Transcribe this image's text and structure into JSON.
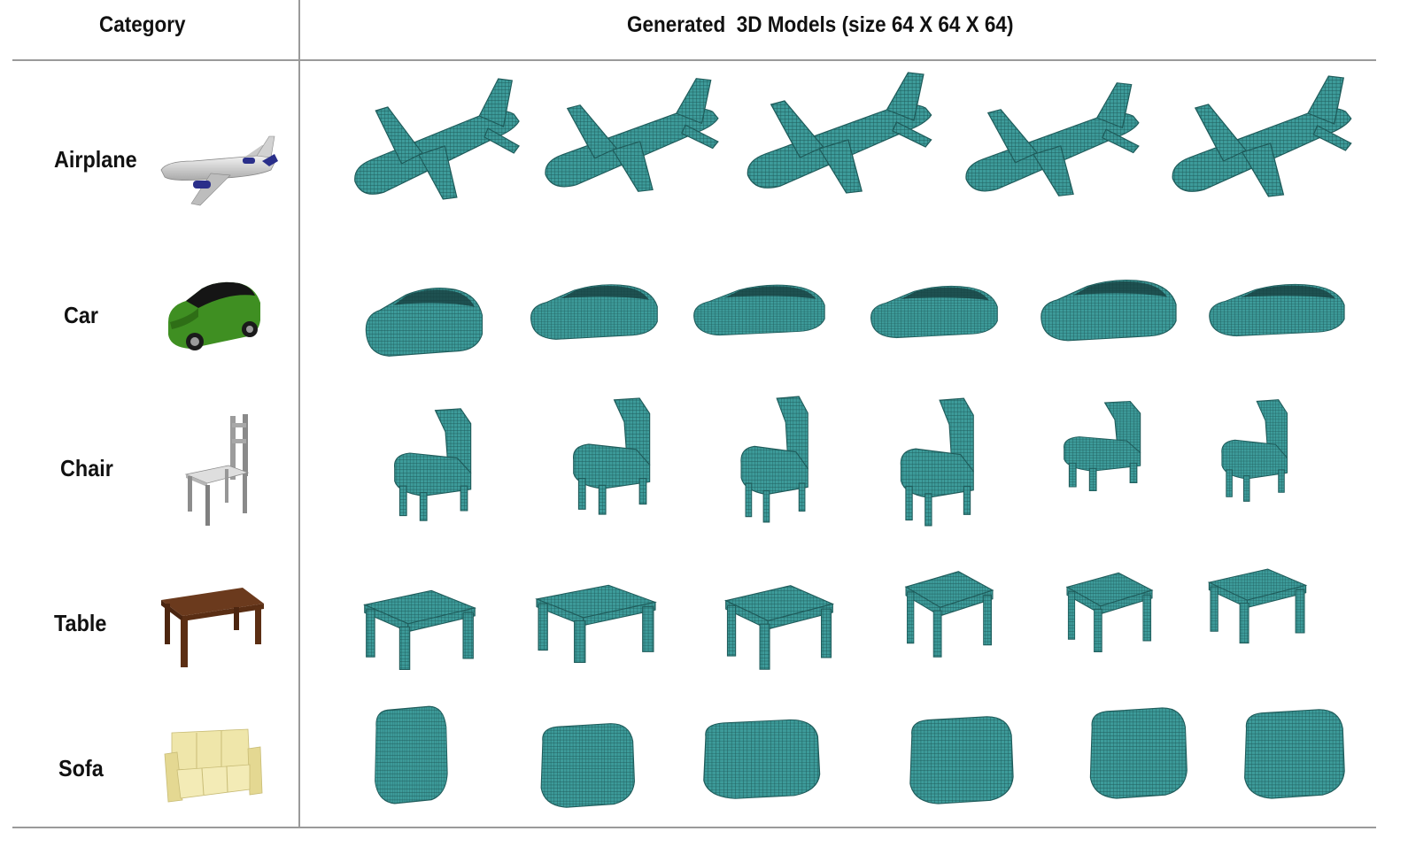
{
  "figure": {
    "header_category": "Category",
    "header_models": "Generated  3D Models (size 64 X 64 X 64)"
  },
  "colors": {
    "voxel_fill": "#3d9b9a",
    "voxel_edge": "#1f5c5b",
    "rule": "#9a9a9a"
  },
  "rows": [
    {
      "label": "Airplane",
      "reference_icon": "airplane-icon",
      "generated_count": 5
    },
    {
      "label": "Car",
      "reference_icon": "car-icon",
      "generated_count": 6
    },
    {
      "label": "Chair",
      "reference_icon": "chair-icon",
      "generated_count": 6
    },
    {
      "label": "Table",
      "reference_icon": "table-icon",
      "generated_count": 6
    },
    {
      "label": "Sofa",
      "reference_icon": "sofa-icon",
      "generated_count": 6
    }
  ]
}
